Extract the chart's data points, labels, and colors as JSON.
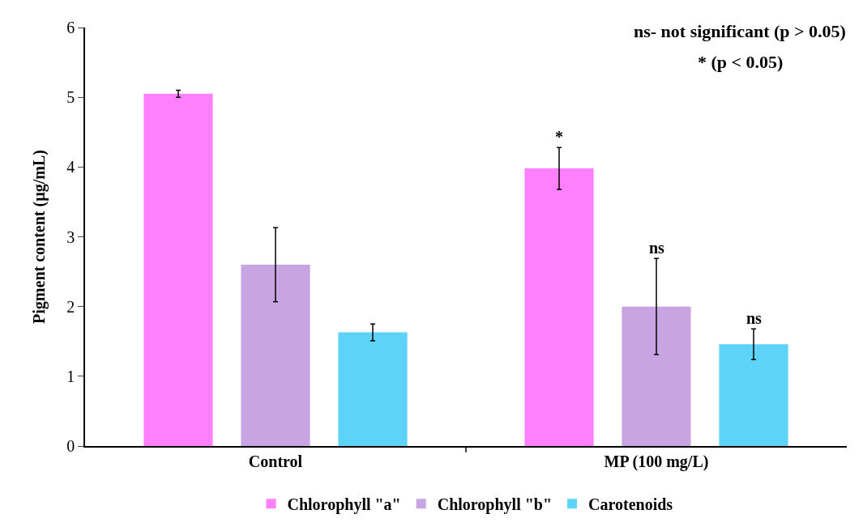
{
  "chart_data": {
    "type": "bar",
    "ylabel": "Pigment content (µg/mL)",
    "categories": [
      "Control",
      "MP (100 mg/L)"
    ],
    "series": [
      {
        "name": "Chlorophyll \"a\"",
        "color": "#ff80ff",
        "values": [
          5.05,
          3.98
        ],
        "errors": [
          0.05,
          0.3
        ]
      },
      {
        "name": "Chlorophyll \"b\"",
        "color": "#c9a4e2",
        "values": [
          2.6,
          2.0
        ],
        "errors": [
          0.53,
          0.69
        ]
      },
      {
        "name": "Carotenoids",
        "color": "#5dd3f8",
        "values": [
          1.63,
          1.46
        ],
        "errors": [
          0.12,
          0.22
        ]
      }
    ],
    "ylim": [
      0,
      6
    ],
    "yticks": [
      0,
      1,
      2,
      3,
      4,
      5,
      6
    ],
    "grid": false,
    "legend": "bottom",
    "annotations": [
      "ns- not significant (p > 0.05)",
      "* (p < 0.05)",
      "*",
      "ns",
      "ns"
    ]
  }
}
